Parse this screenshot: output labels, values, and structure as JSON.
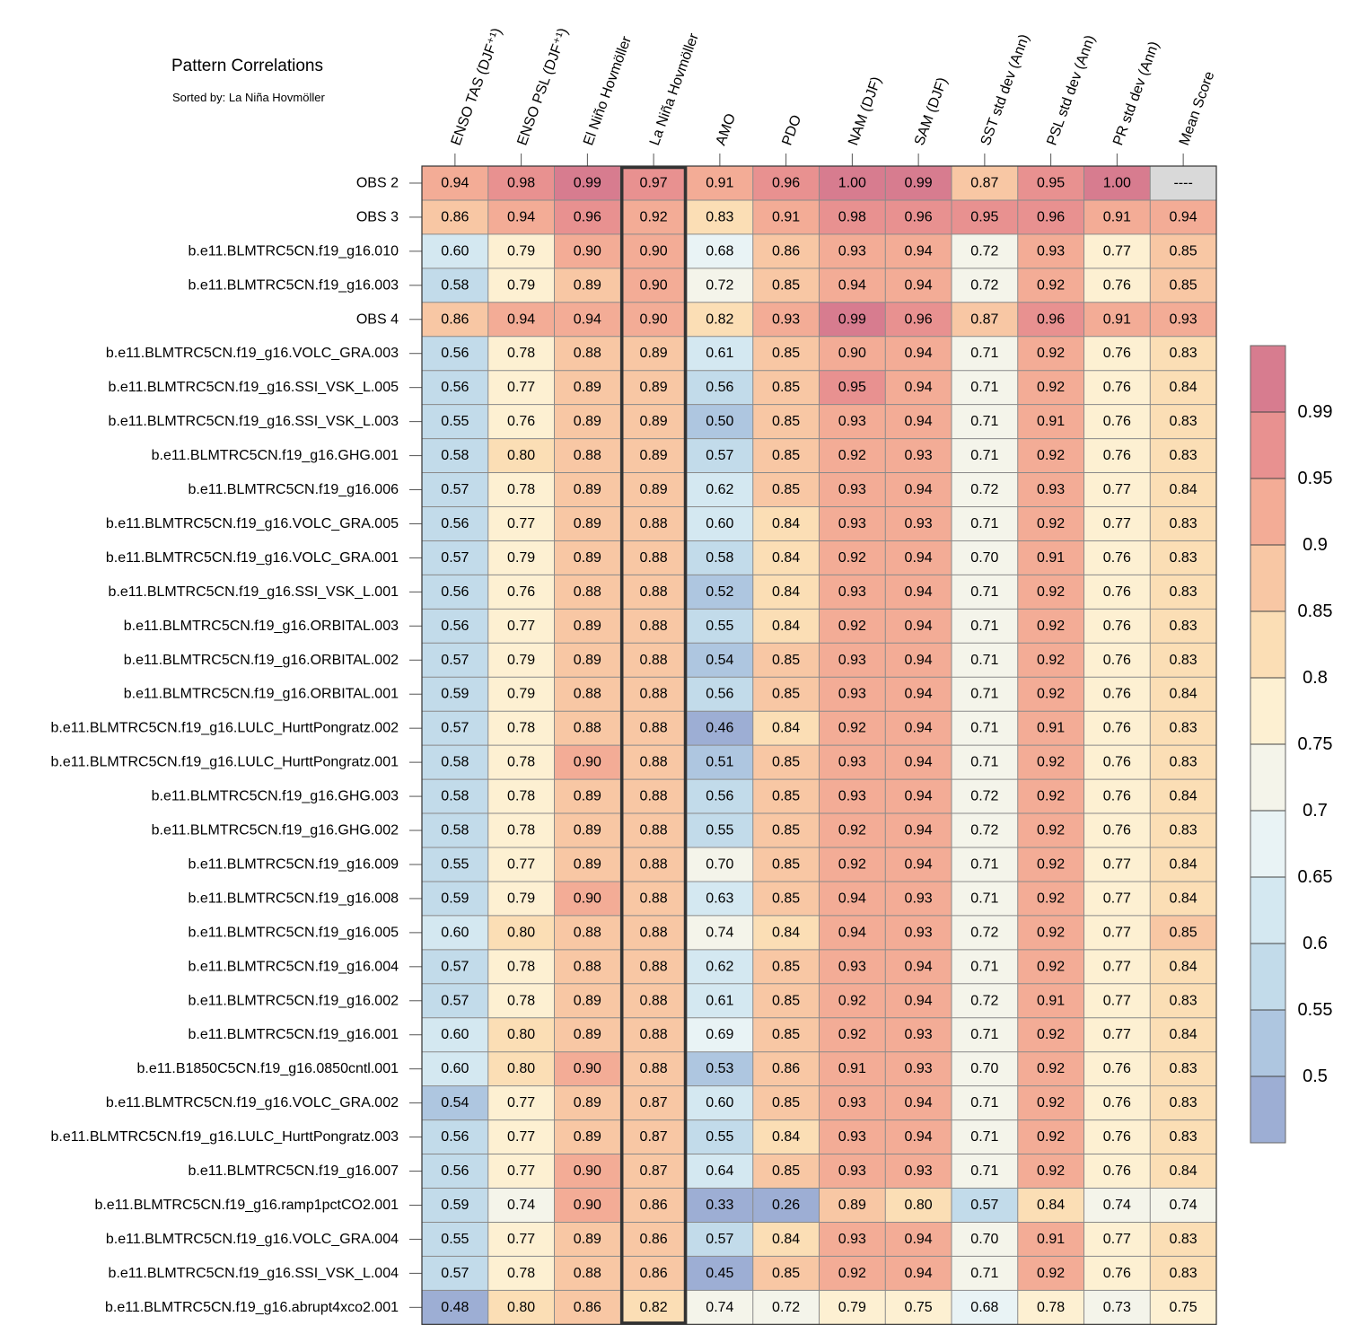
{
  "chart_data": {
    "type": "heatmap",
    "title": "Pattern Correlations",
    "subtitle": "Sorted by: La Niña Hovmöller",
    "columns": [
      "ENSO TAS (DJF⁺¹)",
      "ENSO PSL (DJF⁺¹)",
      "El Niño Hovmöller",
      "La Niña Hovmöller",
      "AMO",
      "PDO",
      "NAM (DJF)",
      "SAM (DJF)",
      "SST std dev (Ann)",
      "PSL std dev (Ann)",
      "PR std dev (Ann)",
      "Mean Score"
    ],
    "highlighted_column": "La Niña Hovmöller",
    "rows": [
      {
        "name": "OBS 2",
        "values": [
          "0.94",
          "0.98",
          "0.99",
          "0.97",
          "0.91",
          "0.96",
          "1.00",
          "0.99",
          "0.87",
          "0.95",
          "1.00",
          "----"
        ]
      },
      {
        "name": "OBS 3",
        "values": [
          "0.86",
          "0.94",
          "0.96",
          "0.92",
          "0.83",
          "0.91",
          "0.98",
          "0.96",
          "0.95",
          "0.96",
          "0.91",
          "0.94"
        ]
      },
      {
        "name": "b.e11.BLMTRC5CN.f19_g16.010",
        "values": [
          "0.60",
          "0.79",
          "0.90",
          "0.90",
          "0.68",
          "0.86",
          "0.93",
          "0.94",
          "0.72",
          "0.93",
          "0.77",
          "0.85"
        ]
      },
      {
        "name": "b.e11.BLMTRC5CN.f19_g16.003",
        "values": [
          "0.58",
          "0.79",
          "0.89",
          "0.90",
          "0.72",
          "0.85",
          "0.94",
          "0.94",
          "0.72",
          "0.92",
          "0.76",
          "0.85"
        ]
      },
      {
        "name": "OBS 4",
        "values": [
          "0.86",
          "0.94",
          "0.94",
          "0.90",
          "0.82",
          "0.93",
          "0.99",
          "0.96",
          "0.87",
          "0.96",
          "0.91",
          "0.93"
        ]
      },
      {
        "name": "b.e11.BLMTRC5CN.f19_g16.VOLC_GRA.003",
        "values": [
          "0.56",
          "0.78",
          "0.88",
          "0.89",
          "0.61",
          "0.85",
          "0.90",
          "0.94",
          "0.71",
          "0.92",
          "0.76",
          "0.83"
        ]
      },
      {
        "name": "b.e11.BLMTRC5CN.f19_g16.SSI_VSK_L.005",
        "values": [
          "0.56",
          "0.77",
          "0.89",
          "0.89",
          "0.56",
          "0.85",
          "0.95",
          "0.94",
          "0.71",
          "0.92",
          "0.76",
          "0.84"
        ]
      },
      {
        "name": "b.e11.BLMTRC5CN.f19_g16.SSI_VSK_L.003",
        "values": [
          "0.55",
          "0.76",
          "0.89",
          "0.89",
          "0.50",
          "0.85",
          "0.93",
          "0.94",
          "0.71",
          "0.91",
          "0.76",
          "0.83"
        ]
      },
      {
        "name": "b.e11.BLMTRC5CN.f19_g16.GHG.001",
        "values": [
          "0.58",
          "0.80",
          "0.88",
          "0.89",
          "0.57",
          "0.85",
          "0.92",
          "0.93",
          "0.71",
          "0.92",
          "0.76",
          "0.83"
        ]
      },
      {
        "name": "b.e11.BLMTRC5CN.f19_g16.006",
        "values": [
          "0.57",
          "0.78",
          "0.89",
          "0.89",
          "0.62",
          "0.85",
          "0.93",
          "0.94",
          "0.72",
          "0.93",
          "0.77",
          "0.84"
        ]
      },
      {
        "name": "b.e11.BLMTRC5CN.f19_g16.VOLC_GRA.005",
        "values": [
          "0.56",
          "0.77",
          "0.89",
          "0.88",
          "0.60",
          "0.84",
          "0.93",
          "0.93",
          "0.71",
          "0.92",
          "0.77",
          "0.83"
        ]
      },
      {
        "name": "b.e11.BLMTRC5CN.f19_g16.VOLC_GRA.001",
        "values": [
          "0.57",
          "0.79",
          "0.89",
          "0.88",
          "0.58",
          "0.84",
          "0.92",
          "0.94",
          "0.70",
          "0.91",
          "0.76",
          "0.83"
        ]
      },
      {
        "name": "b.e11.BLMTRC5CN.f19_g16.SSI_VSK_L.001",
        "values": [
          "0.56",
          "0.76",
          "0.88",
          "0.88",
          "0.52",
          "0.84",
          "0.93",
          "0.94",
          "0.71",
          "0.92",
          "0.76",
          "0.83"
        ]
      },
      {
        "name": "b.e11.BLMTRC5CN.f19_g16.ORBITAL.003",
        "values": [
          "0.56",
          "0.77",
          "0.89",
          "0.88",
          "0.55",
          "0.84",
          "0.92",
          "0.94",
          "0.71",
          "0.92",
          "0.76",
          "0.83"
        ]
      },
      {
        "name": "b.e11.BLMTRC5CN.f19_g16.ORBITAL.002",
        "values": [
          "0.57",
          "0.79",
          "0.89",
          "0.88",
          "0.54",
          "0.85",
          "0.93",
          "0.94",
          "0.71",
          "0.92",
          "0.76",
          "0.83"
        ]
      },
      {
        "name": "b.e11.BLMTRC5CN.f19_g16.ORBITAL.001",
        "values": [
          "0.59",
          "0.79",
          "0.88",
          "0.88",
          "0.56",
          "0.85",
          "0.93",
          "0.94",
          "0.71",
          "0.92",
          "0.76",
          "0.84"
        ]
      },
      {
        "name": "b.e11.BLMTRC5CN.f19_g16.LULC_HurttPongratz.002",
        "values": [
          "0.57",
          "0.78",
          "0.88",
          "0.88",
          "0.46",
          "0.84",
          "0.92",
          "0.94",
          "0.71",
          "0.91",
          "0.76",
          "0.83"
        ]
      },
      {
        "name": "b.e11.BLMTRC5CN.f19_g16.LULC_HurttPongratz.001",
        "values": [
          "0.58",
          "0.78",
          "0.90",
          "0.88",
          "0.51",
          "0.85",
          "0.93",
          "0.94",
          "0.71",
          "0.92",
          "0.76",
          "0.83"
        ]
      },
      {
        "name": "b.e11.BLMTRC5CN.f19_g16.GHG.003",
        "values": [
          "0.58",
          "0.78",
          "0.89",
          "0.88",
          "0.56",
          "0.85",
          "0.93",
          "0.94",
          "0.72",
          "0.92",
          "0.76",
          "0.84"
        ]
      },
      {
        "name": "b.e11.BLMTRC5CN.f19_g16.GHG.002",
        "values": [
          "0.58",
          "0.78",
          "0.89",
          "0.88",
          "0.55",
          "0.85",
          "0.92",
          "0.94",
          "0.72",
          "0.92",
          "0.76",
          "0.83"
        ]
      },
      {
        "name": "b.e11.BLMTRC5CN.f19_g16.009",
        "values": [
          "0.55",
          "0.77",
          "0.89",
          "0.88",
          "0.70",
          "0.85",
          "0.92",
          "0.94",
          "0.71",
          "0.92",
          "0.77",
          "0.84"
        ]
      },
      {
        "name": "b.e11.BLMTRC5CN.f19_g16.008",
        "values": [
          "0.59",
          "0.79",
          "0.90",
          "0.88",
          "0.63",
          "0.85",
          "0.94",
          "0.93",
          "0.71",
          "0.92",
          "0.77",
          "0.84"
        ]
      },
      {
        "name": "b.e11.BLMTRC5CN.f19_g16.005",
        "values": [
          "0.60",
          "0.80",
          "0.88",
          "0.88",
          "0.74",
          "0.84",
          "0.94",
          "0.93",
          "0.72",
          "0.92",
          "0.77",
          "0.85"
        ]
      },
      {
        "name": "b.e11.BLMTRC5CN.f19_g16.004",
        "values": [
          "0.57",
          "0.78",
          "0.88",
          "0.88",
          "0.62",
          "0.85",
          "0.93",
          "0.94",
          "0.71",
          "0.92",
          "0.77",
          "0.84"
        ]
      },
      {
        "name": "b.e11.BLMTRC5CN.f19_g16.002",
        "values": [
          "0.57",
          "0.78",
          "0.89",
          "0.88",
          "0.61",
          "0.85",
          "0.92",
          "0.94",
          "0.72",
          "0.91",
          "0.77",
          "0.83"
        ]
      },
      {
        "name": "b.e11.BLMTRC5CN.f19_g16.001",
        "values": [
          "0.60",
          "0.80",
          "0.89",
          "0.88",
          "0.69",
          "0.85",
          "0.92",
          "0.93",
          "0.71",
          "0.92",
          "0.77",
          "0.84"
        ]
      },
      {
        "name": "b.e11.B1850C5CN.f19_g16.0850cntl.001",
        "values": [
          "0.60",
          "0.80",
          "0.90",
          "0.88",
          "0.53",
          "0.86",
          "0.91",
          "0.93",
          "0.70",
          "0.92",
          "0.76",
          "0.83"
        ]
      },
      {
        "name": "b.e11.BLMTRC5CN.f19_g16.VOLC_GRA.002",
        "values": [
          "0.54",
          "0.77",
          "0.89",
          "0.87",
          "0.60",
          "0.85",
          "0.93",
          "0.94",
          "0.71",
          "0.92",
          "0.76",
          "0.83"
        ]
      },
      {
        "name": "b.e11.BLMTRC5CN.f19_g16.LULC_HurttPongratz.003",
        "values": [
          "0.56",
          "0.77",
          "0.89",
          "0.87",
          "0.55",
          "0.84",
          "0.93",
          "0.94",
          "0.71",
          "0.92",
          "0.76",
          "0.83"
        ]
      },
      {
        "name": "b.e11.BLMTRC5CN.f19_g16.007",
        "values": [
          "0.56",
          "0.77",
          "0.90",
          "0.87",
          "0.64",
          "0.85",
          "0.93",
          "0.93",
          "0.71",
          "0.92",
          "0.76",
          "0.84"
        ]
      },
      {
        "name": "b.e11.BLMTRC5CN.f19_g16.ramp1pctCO2.001",
        "values": [
          "0.59",
          "0.74",
          "0.90",
          "0.86",
          "0.33",
          "0.26",
          "0.89",
          "0.80",
          "0.57",
          "0.84",
          "0.74",
          "0.74"
        ]
      },
      {
        "name": "b.e11.BLMTRC5CN.f19_g16.VOLC_GRA.004",
        "values": [
          "0.55",
          "0.77",
          "0.89",
          "0.86",
          "0.57",
          "0.84",
          "0.93",
          "0.94",
          "0.70",
          "0.91",
          "0.77",
          "0.83"
        ]
      },
      {
        "name": "b.e11.BLMTRC5CN.f19_g16.SSI_VSK_L.004",
        "values": [
          "0.57",
          "0.78",
          "0.88",
          "0.86",
          "0.45",
          "0.85",
          "0.92",
          "0.94",
          "0.71",
          "0.92",
          "0.76",
          "0.83"
        ]
      },
      {
        "name": "b.e11.BLMTRC5CN.f19_g16.abrupt4xco2.001",
        "values": [
          "0.48",
          "0.80",
          "0.86",
          "0.82",
          "0.74",
          "0.72",
          "0.79",
          "0.75",
          "0.68",
          "0.78",
          "0.73",
          "0.75"
        ]
      }
    ],
    "colorbar": {
      "levels": [
        "0.5",
        "0.55",
        "0.6",
        "0.65",
        "0.7",
        "0.75",
        "0.8",
        "0.85",
        "0.9",
        "0.95",
        "0.99"
      ],
      "colors": [
        "#9daed4",
        "#aec6e0",
        "#c2dbea",
        "#d4e8f1",
        "#e9f3f5",
        "#f4f4ea",
        "#fdf0d2",
        "#fbdeb5",
        "#f8c7a4",
        "#f3ac96",
        "#e89190",
        "#d77c8f"
      ],
      "missing_color": "#d9d9d9"
    }
  }
}
